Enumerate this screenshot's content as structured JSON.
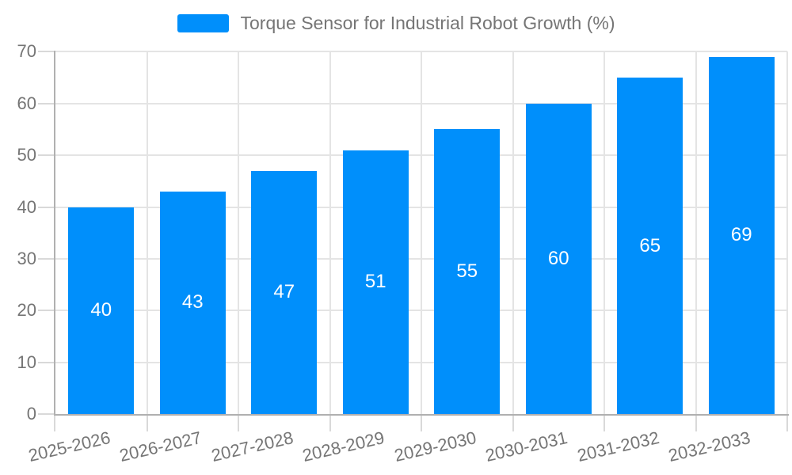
{
  "chart_data": {
    "type": "bar",
    "title": "Torque Sensor for Industrial Robot Growth (%)",
    "categories": [
      "2025-2026",
      "2026-2027",
      "2027-2028",
      "2028-2029",
      "2029-2030",
      "2030-2031",
      "2031-2032",
      "2032-2033"
    ],
    "series": [
      {
        "name": "Torque Sensor for Industrial Robot Growth (%)",
        "values": [
          40,
          43,
          47,
          51,
          55,
          60,
          65,
          69
        ]
      }
    ],
    "xlabel": "",
    "ylabel": "",
    "ylim": [
      0,
      70
    ],
    "yticks": [
      0,
      10,
      20,
      30,
      40,
      50,
      60,
      70
    ],
    "grid": true,
    "legend_position": "top",
    "bar_value_labels": "inside-center",
    "colors": {
      "bar": "#008FFB",
      "grid": "#e4e4e4",
      "tick": "#d9d9d9",
      "axis": "#b0b0b0",
      "label": "#757575",
      "value_label": "#ffffff",
      "background": "#ffffff"
    }
  }
}
